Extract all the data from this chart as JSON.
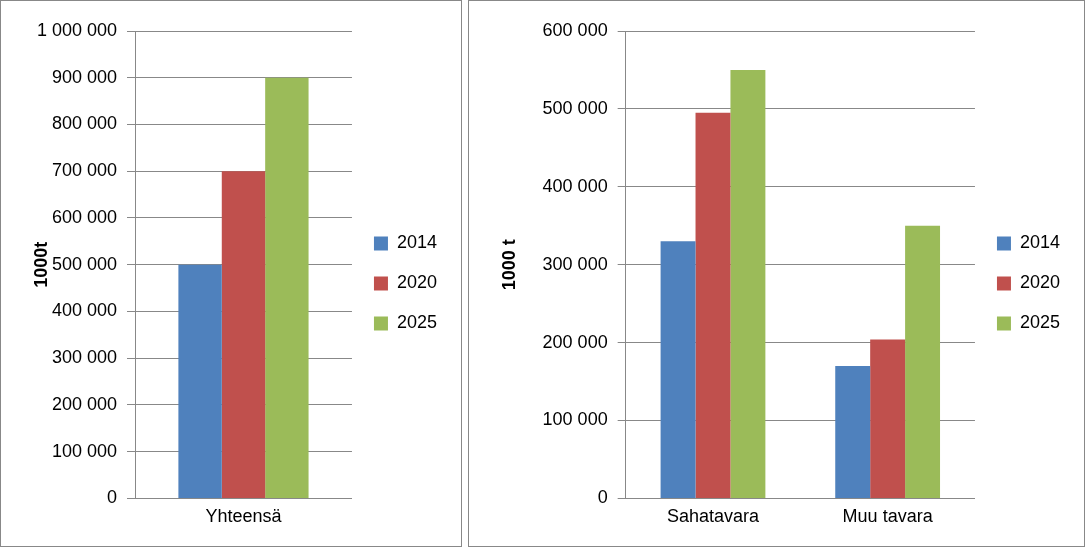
{
  "chart_data": [
    {
      "type": "bar",
      "ylabel": "1000t",
      "categories": [
        "Yhteensä"
      ],
      "series": [
        {
          "name": "2014",
          "color": "#4f81bd",
          "values": [
            500000
          ]
        },
        {
          "name": "2020",
          "color": "#c0504d",
          "values": [
            700000
          ]
        },
        {
          "name": "2025",
          "color": "#9bbb59",
          "values": [
            900000
          ]
        }
      ],
      "ylim": [
        0,
        1000000
      ],
      "yticks": [
        0,
        {
          "value": 100000,
          "label": "100 000"
        },
        {
          "value": 200000,
          "label": "200 000"
        },
        {
          "value": 300000,
          "label": "300 000"
        },
        {
          "value": 400000,
          "label": "400 000"
        },
        {
          "value": 500000,
          "label": "500 000"
        },
        {
          "value": 600000,
          "label": "600 000"
        },
        {
          "value": 700000,
          "label": "700 000"
        },
        {
          "value": 800000,
          "label": "800 000"
        },
        {
          "value": 900000,
          "label": "900 000"
        },
        {
          "value": 1000000,
          "label": "1 000 000"
        }
      ],
      "grid": "y",
      "legend": "right"
    },
    {
      "type": "bar",
      "ylabel": "1000 t",
      "categories": [
        "Sahatavara",
        "Muu tavara"
      ],
      "series": [
        {
          "name": "2014",
          "color": "#4f81bd",
          "values": [
            330000,
            170000
          ]
        },
        {
          "name": "2020",
          "color": "#c0504d",
          "values": [
            495000,
            204000
          ]
        },
        {
          "name": "2025",
          "color": "#9bbb59",
          "values": [
            550000,
            350000
          ]
        }
      ],
      "ylim": [
        0,
        600000
      ],
      "yticks": [
        0,
        {
          "value": 100000,
          "label": "100 000"
        },
        {
          "value": 200000,
          "label": "200 000"
        },
        {
          "value": 300000,
          "label": "300 000"
        },
        {
          "value": 400000,
          "label": "400 000"
        },
        {
          "value": 500000,
          "label": "500 000"
        },
        {
          "value": 600000,
          "label": "600 000"
        }
      ],
      "grid": "y",
      "legend": "right"
    }
  ]
}
